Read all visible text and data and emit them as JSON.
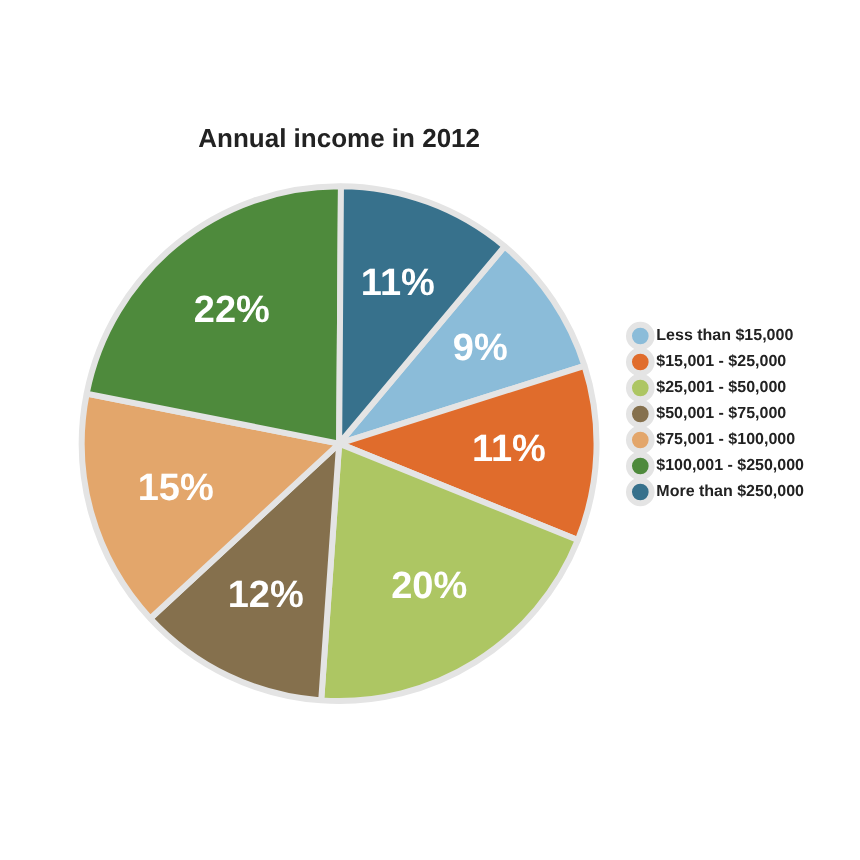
{
  "chart_data": {
    "type": "pie",
    "title": "Annual income in 2012",
    "categories": [
      "Less than $15,000",
      "$15,001 - $25,000",
      "$25,001 - $50,000",
      "$50,001 - $75,000",
      "$75,001 - $100,000",
      "$100,001 - $250,000",
      "More than $250,000"
    ],
    "values": [
      9,
      11,
      20,
      12,
      15,
      22,
      11
    ],
    "colors": [
      "#8bbcd9",
      "#e06c2c",
      "#adc663",
      "#85704d",
      "#e3a66b",
      "#4e8a3c",
      "#37718c"
    ],
    "value_labels": [
      "9%",
      "11%",
      "20%",
      "12%",
      "15%",
      "22%",
      "11%"
    ],
    "legend": "right"
  }
}
